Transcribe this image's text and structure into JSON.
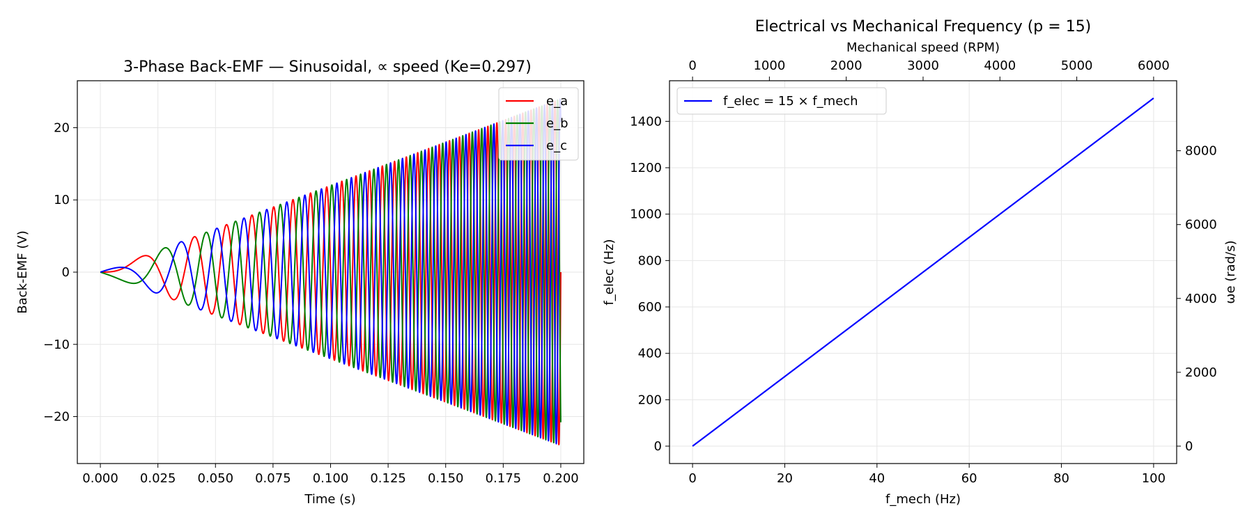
{
  "chart_data": [
    {
      "type": "line",
      "title": "3-Phase Back-EMF — Sinusoidal, ∝ speed (Ke=0.297)",
      "xlabel": "Time (s)",
      "ylabel": "Back-EMF (V)",
      "xlim": [
        -0.01,
        0.21
      ],
      "ylim": [
        -26.5,
        26.5
      ],
      "x_ticks": [
        0.0,
        0.025,
        0.05,
        0.075,
        0.1,
        0.125,
        0.15,
        0.175,
        0.2
      ],
      "x_tick_labels": [
        "0.000",
        "0.025",
        "0.050",
        "0.075",
        "0.100",
        "0.125",
        "0.150",
        "0.175",
        "0.200"
      ],
      "y_ticks": [
        -20,
        -10,
        0,
        10,
        20
      ],
      "y_tick_labels": [
        "−20",
        "−10",
        "0",
        "10",
        "20"
      ],
      "grid": true,
      "legend_position": "top-right",
      "model": {
        "t_start": 0.0,
        "t_end": 0.2,
        "amplitude_at_t_end": 24,
        "electrical_frequency_rate_hz_per_s": 1500,
        "phase_offsets_deg": [
          0,
          -120,
          120
        ]
      },
      "series": [
        {
          "name": "e_a",
          "color": "#ff0000"
        },
        {
          "name": "e_b",
          "color": "#008000"
        },
        {
          "name": "e_c",
          "color": "#0000ff"
        }
      ]
    },
    {
      "type": "line",
      "title": "Electrical vs Mechanical Frequency (p = 15)",
      "xlabel": "f_mech (Hz)",
      "ylabel": "f_elec (Hz)",
      "top_xlabel": "Mechanical speed (RPM)",
      "right_ylabel": "ωe (rad/s)",
      "xlim": [
        -5,
        105
      ],
      "ylim": [
        -75,
        1575
      ],
      "x_ticks": [
        0,
        20,
        40,
        60,
        80,
        100
      ],
      "x_tick_labels": [
        "0",
        "20",
        "40",
        "60",
        "80",
        "100"
      ],
      "y_ticks": [
        0,
        200,
        400,
        600,
        800,
        1000,
        1200,
        1400
      ],
      "y_tick_labels": [
        "0",
        "200",
        "400",
        "600",
        "800",
        "1000",
        "1200",
        "1400"
      ],
      "top_x_ticks_rpm": [
        0,
        1000,
        2000,
        3000,
        4000,
        5000,
        6000
      ],
      "top_x_tick_labels": [
        "0",
        "1000",
        "2000",
        "3000",
        "4000",
        "5000",
        "6000"
      ],
      "right_y_ticks_rad_s": [
        0,
        2000,
        4000,
        6000,
        8000
      ],
      "right_y_tick_labels": [
        "0",
        "2000",
        "4000",
        "6000",
        "8000"
      ],
      "grid": true,
      "legend_position": "top-left",
      "series": [
        {
          "name": "f_elec = 15 × f_mech",
          "color": "#0000ff",
          "x": [
            0,
            100
          ],
          "y": [
            0,
            1500
          ]
        }
      ]
    }
  ]
}
